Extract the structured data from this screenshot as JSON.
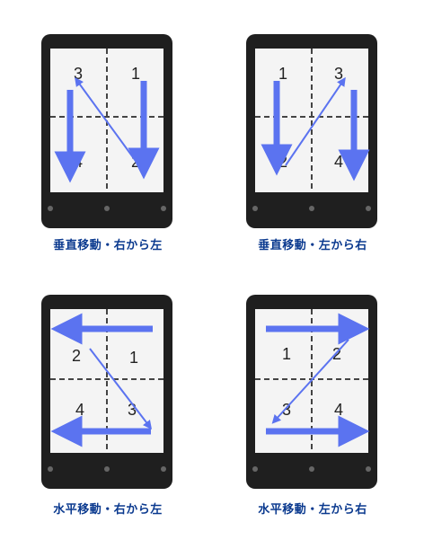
{
  "panels": [
    {
      "caption": "垂直移動・右から左",
      "labels": [
        "3",
        "1",
        "4",
        "2"
      ]
    },
    {
      "caption": "垂直移動・左から右",
      "labels": [
        "1",
        "3",
        "2",
        "4"
      ]
    },
    {
      "caption": "水平移動・右から左",
      "labels": [
        "2",
        "1",
        "4",
        "3"
      ]
    },
    {
      "caption": "水平移動・左から右",
      "labels": [
        "1",
        "2",
        "3",
        "4"
      ]
    }
  ],
  "colors": {
    "arrow": "#5b73f0",
    "device": "#1f1f1f",
    "screen": "#f4f4f4",
    "caption": "#0b3a8f"
  }
}
